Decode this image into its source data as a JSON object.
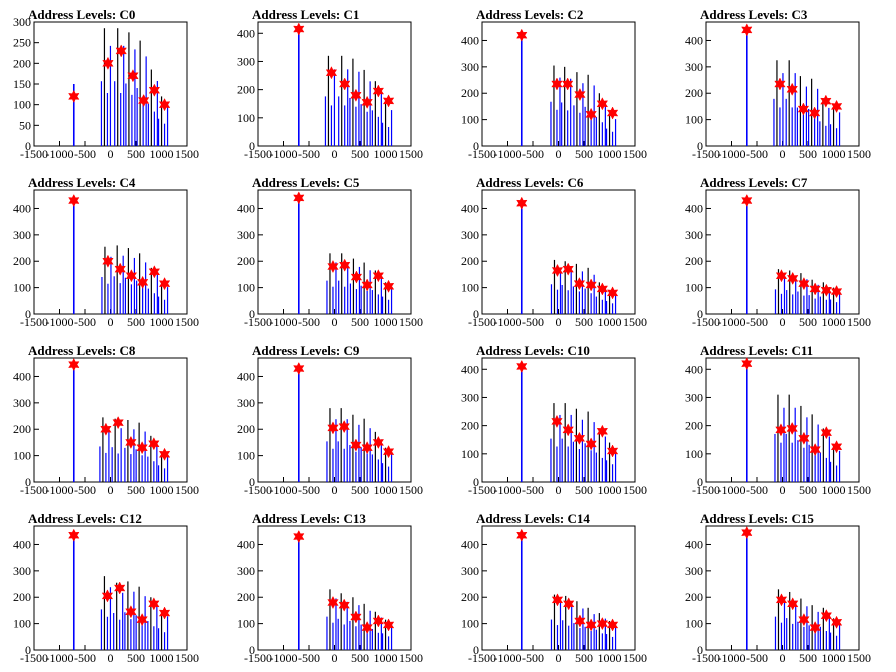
{
  "figure": {
    "colors": {
      "histogram": "#0000ff",
      "histogram_tail": "#000000",
      "marker": "#ff0000"
    }
  },
  "chart_data": [
    {
      "type": "bar",
      "title": "Address Levels: C0",
      "xlim": [
        -1500,
        1500
      ],
      "ylim": [
        0,
        300
      ],
      "yticks": [
        0,
        50,
        100,
        150,
        200,
        250,
        300
      ],
      "xticks": [
        -1500,
        -1000,
        -500,
        0,
        500,
        1000,
        1500
      ],
      "markers": {
        "x": [
          -720,
          -50,
          210,
          440,
          650,
          860,
          1060
        ],
        "y": [
          120,
          200,
          230,
          170,
          110,
          135,
          100
        ]
      },
      "bars": {
        "x": [
          -720,
          -60,
          200,
          420,
          640,
          860,
          1060
        ],
        "y": [
          150,
          285,
          285,
          275,
          255,
          185,
          120
        ]
      }
    },
    {
      "type": "bar",
      "title": "Address Levels: C1",
      "xlim": [
        -1500,
        1500
      ],
      "ylim": [
        0,
        440
      ],
      "yticks": [
        0,
        100,
        200,
        300,
        400
      ],
      "xticks": [
        -1500,
        -1000,
        -500,
        0,
        500,
        1000,
        1500
      ],
      "markers": {
        "x": [
          -700,
          -60,
          200,
          420,
          640,
          860,
          1060
        ],
        "y": [
          415,
          260,
          220,
          180,
          155,
          195,
          160
        ]
      },
      "bars": {
        "x": [
          -700,
          -60,
          200,
          420,
          640,
          860,
          1060
        ],
        "y": [
          420,
          320,
          320,
          310,
          270,
          230,
          150
        ]
      }
    },
    {
      "type": "bar",
      "title": "Address Levels: C2",
      "xlim": [
        -1500,
        1500
      ],
      "ylim": [
        0,
        470
      ],
      "yticks": [
        0,
        100,
        200,
        300,
        400
      ],
      "xticks": [
        -1500,
        -1000,
        -500,
        0,
        500,
        1000,
        1500
      ],
      "markers": {
        "x": [
          -720,
          -30,
          180,
          420,
          640,
          860,
          1060
        ],
        "y": [
          420,
          235,
          235,
          195,
          120,
          160,
          125
        ]
      },
      "bars": {
        "x": [
          -720,
          -30,
          180,
          420,
          640,
          860,
          1060
        ],
        "y": [
          430,
          305,
          300,
          280,
          270,
          200,
          120
        ]
      }
    },
    {
      "type": "bar",
      "title": "Address Levels: C3",
      "xlim": [
        -1500,
        1500
      ],
      "ylim": [
        0,
        470
      ],
      "yticks": [
        0,
        100,
        200,
        300,
        400
      ],
      "xticks": [
        -1500,
        -1000,
        -500,
        0,
        500,
        1000,
        1500
      ],
      "markers": {
        "x": [
          -700,
          -50,
          190,
          410,
          630,
          850,
          1060
        ],
        "y": [
          440,
          235,
          215,
          140,
          125,
          170,
          150
        ]
      },
      "bars": {
        "x": [
          -700,
          -50,
          190,
          410,
          630,
          850,
          1060
        ],
        "y": [
          440,
          325,
          325,
          265,
          255,
          170,
          150
        ]
      }
    },
    {
      "type": "bar",
      "title": "Address Levels: C4",
      "xlim": [
        -1500,
        1500
      ],
      "ylim": [
        0,
        470
      ],
      "yticks": [
        0,
        100,
        200,
        300,
        400
      ],
      "xticks": [
        -1500,
        -1000,
        -500,
        0,
        500,
        1000,
        1500
      ],
      "markers": {
        "x": [
          -720,
          -50,
          190,
          410,
          630,
          860,
          1060
        ],
        "y": [
          430,
          200,
          170,
          145,
          120,
          160,
          115
        ]
      },
      "bars": {
        "x": [
          -720,
          -50,
          190,
          410,
          630,
          860,
          1060
        ],
        "y": [
          430,
          255,
          260,
          250,
          230,
          175,
          120
        ]
      }
    },
    {
      "type": "bar",
      "title": "Address Levels: C5",
      "xlim": [
        -1500,
        1500
      ],
      "ylim": [
        0,
        470
      ],
      "yticks": [
        0,
        100,
        200,
        300,
        400
      ],
      "xticks": [
        -1500,
        -1000,
        -500,
        0,
        500,
        1000,
        1500
      ],
      "markers": {
        "x": [
          -700,
          -30,
          200,
          430,
          640,
          860,
          1060
        ],
        "y": [
          440,
          180,
          185,
          140,
          110,
          145,
          105
        ]
      },
      "bars": {
        "x": [
          -700,
          -30,
          200,
          430,
          640,
          860,
          1060
        ],
        "y": [
          440,
          230,
          230,
          210,
          195,
          165,
          120
        ]
      }
    },
    {
      "type": "bar",
      "title": "Address Levels: C6",
      "xlim": [
        -1500,
        1500
      ],
      "ylim": [
        0,
        470
      ],
      "yticks": [
        0,
        100,
        200,
        300,
        400
      ],
      "xticks": [
        -1500,
        -1000,
        -500,
        0,
        500,
        1000,
        1500
      ],
      "markers": {
        "x": [
          -720,
          -20,
          190,
          410,
          640,
          860,
          1060
        ],
        "y": [
          420,
          165,
          170,
          115,
          110,
          95,
          80
        ]
      },
      "bars": {
        "x": [
          -720,
          -20,
          190,
          410,
          640,
          860,
          1060
        ],
        "y": [
          420,
          205,
          200,
          190,
          175,
          120,
          90
        ]
      }
    },
    {
      "type": "bar",
      "title": "Address Levels: C7",
      "xlim": [
        -1500,
        1500
      ],
      "ylim": [
        0,
        470
      ],
      "yticks": [
        0,
        100,
        200,
        300,
        400
      ],
      "xticks": [
        -1500,
        -1000,
        -500,
        0,
        500,
        1000,
        1500
      ],
      "markers": {
        "x": [
          -700,
          -20,
          200,
          420,
          640,
          860,
          1060
        ],
        "y": [
          430,
          145,
          135,
          115,
          95,
          90,
          85
        ]
      },
      "bars": {
        "x": [
          -700,
          -20,
          200,
          420,
          640,
          860,
          1060
        ],
        "y": [
          430,
          170,
          165,
          155,
          130,
          120,
          100
        ]
      }
    },
    {
      "type": "bar",
      "title": "Address Levels: C8",
      "xlim": [
        -1500,
        1500
      ],
      "ylim": [
        0,
        470
      ],
      "yticks": [
        0,
        100,
        200,
        300,
        400
      ],
      "xticks": [
        -1500,
        -1000,
        -500,
        0,
        500,
        1000,
        1500
      ],
      "markers": {
        "x": [
          -720,
          -90,
          150,
          400,
          620,
          850,
          1060
        ],
        "y": [
          445,
          200,
          225,
          150,
          130,
          145,
          105
        ]
      },
      "bars": {
        "x": [
          -720,
          -90,
          150,
          400,
          620,
          850,
          1060
        ],
        "y": [
          445,
          245,
          240,
          235,
          225,
          175,
          115
        ]
      }
    },
    {
      "type": "bar",
      "title": "Address Levels: C9",
      "xlim": [
        -1500,
        1500
      ],
      "ylim": [
        0,
        470
      ],
      "yticks": [
        0,
        100,
        200,
        300,
        400
      ],
      "xticks": [
        -1500,
        -1000,
        -500,
        0,
        500,
        1000,
        1500
      ],
      "markers": {
        "x": [
          -700,
          -30,
          190,
          420,
          640,
          860,
          1060
        ],
        "y": [
          430,
          205,
          210,
          140,
          130,
          150,
          115
        ]
      },
      "bars": {
        "x": [
          -700,
          -30,
          190,
          420,
          640,
          860,
          1060
        ],
        "y": [
          430,
          280,
          280,
          255,
          240,
          190,
          130
        ]
      }
    },
    {
      "type": "bar",
      "title": "Address Levels: C10",
      "xlim": [
        -1500,
        1500
      ],
      "ylim": [
        0,
        440
      ],
      "yticks": [
        0,
        100,
        200,
        300,
        400
      ],
      "xticks": [
        -1500,
        -1000,
        -500,
        0,
        500,
        1000,
        1500
      ],
      "markers": {
        "x": [
          -720,
          -30,
          190,
          410,
          640,
          860,
          1060
        ],
        "y": [
          410,
          215,
          185,
          155,
          135,
          180,
          110
        ]
      },
      "bars": {
        "x": [
          -720,
          -30,
          190,
          410,
          640,
          860,
          1060
        ],
        "y": [
          410,
          280,
          280,
          260,
          250,
          190,
          140
        ]
      }
    },
    {
      "type": "bar",
      "title": "Address Levels: C11",
      "xlim": [
        -1500,
        1500
      ],
      "ylim": [
        0,
        440
      ],
      "yticks": [
        0,
        100,
        200,
        300,
        400
      ],
      "xticks": [
        -1500,
        -1000,
        -500,
        0,
        500,
        1000,
        1500
      ],
      "markers": {
        "x": [
          -700,
          -30,
          190,
          420,
          640,
          860,
          1060
        ],
        "y": [
          420,
          185,
          190,
          155,
          115,
          175,
          125
        ]
      },
      "bars": {
        "x": [
          -700,
          -30,
          190,
          420,
          640,
          860,
          1060
        ],
        "y": [
          420,
          310,
          310,
          270,
          240,
          190,
          130
        ]
      }
    },
    {
      "type": "bar",
      "title": "Address Levels: C12",
      "xlim": [
        -1500,
        1500
      ],
      "ylim": [
        0,
        470
      ],
      "yticks": [
        0,
        100,
        200,
        300,
        400
      ],
      "xticks": [
        -1500,
        -1000,
        -500,
        0,
        500,
        1000,
        1500
      ],
      "markers": {
        "x": [
          -720,
          -60,
          180,
          400,
          620,
          850,
          1060
        ],
        "y": [
          435,
          205,
          235,
          145,
          115,
          175,
          140
        ]
      },
      "bars": {
        "x": [
          -720,
          -60,
          180,
          400,
          620,
          850,
          1060
        ],
        "y": [
          435,
          280,
          255,
          260,
          240,
          200,
          150
        ]
      }
    },
    {
      "type": "bar",
      "title": "Address Levels: C13",
      "xlim": [
        -1500,
        1500
      ],
      "ylim": [
        0,
        470
      ],
      "yticks": [
        0,
        100,
        200,
        300,
        400
      ],
      "xticks": [
        -1500,
        -1000,
        -500,
        0,
        500,
        1000,
        1500
      ],
      "markers": {
        "x": [
          -700,
          -30,
          190,
          420,
          640,
          860,
          1060
        ],
        "y": [
          430,
          180,
          170,
          125,
          85,
          110,
          95
        ]
      },
      "bars": {
        "x": [
          -700,
          -30,
          190,
          420,
          640,
          860,
          1060
        ],
        "y": [
          430,
          230,
          215,
          200,
          175,
          145,
          115
        ]
      }
    },
    {
      "type": "bar",
      "title": "Address Levels: C14",
      "xlim": [
        -1500,
        1500
      ],
      "ylim": [
        0,
        470
      ],
      "yticks": [
        0,
        100,
        200,
        300,
        400
      ],
      "xticks": [
        -1500,
        -1000,
        -500,
        0,
        500,
        1000,
        1500
      ],
      "markers": {
        "x": [
          -720,
          -20,
          200,
          420,
          640,
          860,
          1060
        ],
        "y": [
          435,
          190,
          175,
          110,
          95,
          100,
          95
        ]
      },
      "bars": {
        "x": [
          -720,
          -20,
          200,
          420,
          640,
          860,
          1060
        ],
        "y": [
          435,
          210,
          205,
          185,
          160,
          140,
          110
        ]
      }
    },
    {
      "type": "bar",
      "title": "Address Levels: C15",
      "xlim": [
        -1500,
        1500
      ],
      "ylim": [
        0,
        470
      ],
      "yticks": [
        0,
        100,
        200,
        300,
        400
      ],
      "xticks": [
        -1500,
        -1000,
        -500,
        0,
        500,
        1000,
        1500
      ],
      "markers": {
        "x": [
          -700,
          -20,
          200,
          420,
          640,
          860,
          1060
        ],
        "y": [
          445,
          190,
          175,
          115,
          85,
          130,
          105
        ]
      },
      "bars": {
        "x": [
          -700,
          -20,
          200,
          420,
          640,
          860,
          1060
        ],
        "y": [
          445,
          230,
          220,
          195,
          170,
          160,
          120
        ]
      }
    }
  ]
}
